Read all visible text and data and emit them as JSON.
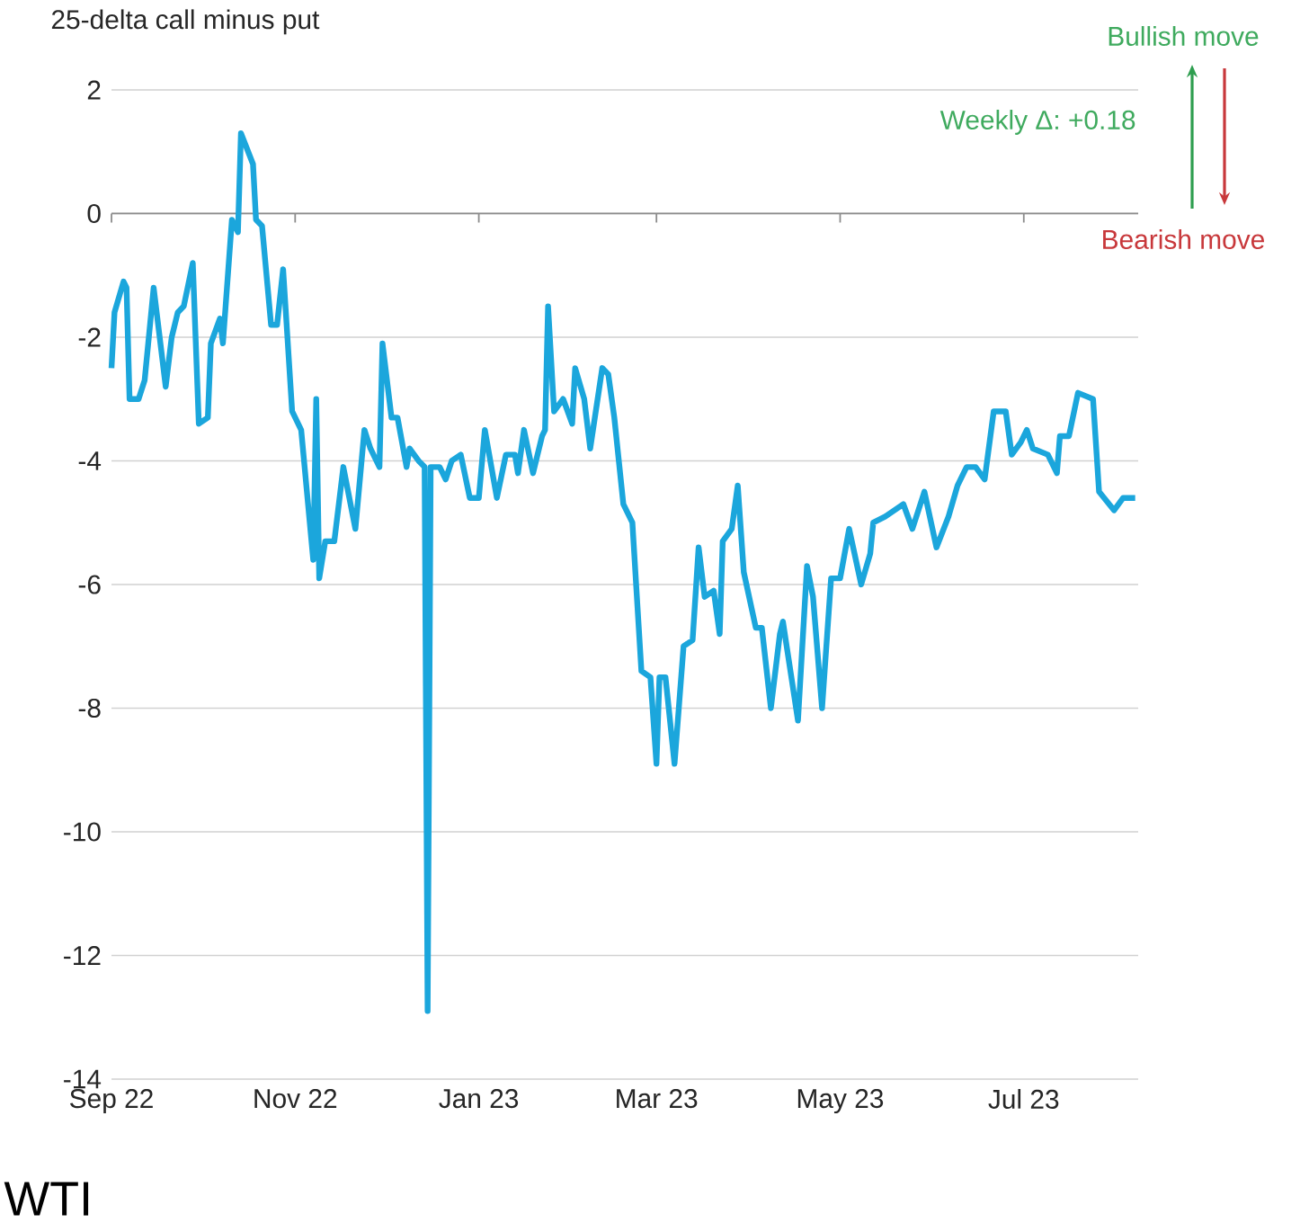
{
  "chart_data": {
    "type": "line",
    "title": "25-delta call minus put",
    "annotations": [
      "Weekly Δ: +0.18",
      "Bullish move",
      "Bearish move",
      "WTI"
    ],
    "x": [
      "2022-09-01",
      "2022-09-02",
      "2022-09-05",
      "2022-09-06",
      "2022-09-07",
      "2022-09-10",
      "2022-09-12",
      "2022-09-15",
      "2022-09-19",
      "2022-09-21",
      "2022-09-23",
      "2022-09-25",
      "2022-09-28",
      "2022-09-30",
      "2022-10-03",
      "2022-10-04",
      "2022-10-07",
      "2022-10-08",
      "2022-10-11",
      "2022-10-13",
      "2022-10-14",
      "2022-10-18",
      "2022-10-19",
      "2022-10-21",
      "2022-10-24",
      "2022-10-26",
      "2022-10-28",
      "2022-10-31",
      "2022-11-03",
      "2022-11-07",
      "2022-11-08",
      "2022-11-09",
      "2022-11-11",
      "2022-11-14",
      "2022-11-17",
      "2022-11-21",
      "2022-11-24",
      "2022-11-26",
      "2022-11-29",
      "2022-11-30",
      "2022-12-03",
      "2022-12-05",
      "2022-12-08",
      "2022-12-09",
      "2022-12-12",
      "2022-12-14",
      "2022-12-15",
      "2022-12-16",
      "2022-12-19",
      "2022-12-21",
      "2022-12-23",
      "2022-12-26",
      "2022-12-29",
      "2023-01-01",
      "2023-01-03",
      "2023-01-07",
      "2023-01-10",
      "2023-01-13",
      "2023-01-14",
      "2023-01-16",
      "2023-01-19",
      "2023-01-22",
      "2023-01-23",
      "2023-01-24",
      "2023-01-26",
      "2023-01-29",
      "2023-02-01",
      "2023-02-02",
      "2023-02-05",
      "2023-02-07",
      "2023-02-11",
      "2023-02-13",
      "2023-02-15",
      "2023-02-18",
      "2023-02-21",
      "2023-02-23",
      "2023-02-24",
      "2023-02-27",
      "2023-03-01",
      "2023-03-02",
      "2023-03-04",
      "2023-03-07",
      "2023-03-10",
      "2023-03-13",
      "2023-03-15",
      "2023-03-17",
      "2023-03-20",
      "2023-03-22",
      "2023-03-23",
      "2023-03-26",
      "2023-03-28",
      "2023-03-30",
      "2023-04-03",
      "2023-04-05",
      "2023-04-08",
      "2023-04-11",
      "2023-04-12",
      "2023-04-17",
      "2023-04-20",
      "2023-04-22",
      "2023-04-25",
      "2023-04-28",
      "2023-05-01",
      "2023-05-04",
      "2023-05-08",
      "2023-05-11",
      "2023-05-12",
      "2023-05-16",
      "2023-05-19",
      "2023-05-22",
      "2023-05-25",
      "2023-05-29",
      "2023-06-02",
      "2023-06-06",
      "2023-06-09",
      "2023-06-12",
      "2023-06-15",
      "2023-06-18",
      "2023-06-21",
      "2023-06-25",
      "2023-06-27",
      "2023-06-30",
      "2023-07-02",
      "2023-07-04",
      "2023-07-09",
      "2023-07-12",
      "2023-07-13",
      "2023-07-16",
      "2023-07-19",
      "2023-07-24",
      "2023-07-26",
      "2023-07-31",
      "2023-08-03",
      "2023-08-06",
      "2023-08-07"
    ],
    "series": [
      {
        "color": "#1ba6dc",
        "values": [
          -2.5,
          -1.6,
          -1.1,
          -1.2,
          -3.0,
          -3.0,
          -2.7,
          -1.2,
          -2.8,
          -2.0,
          -1.6,
          -1.5,
          -0.8,
          -3.4,
          -3.3,
          -2.1,
          -1.7,
          -2.1,
          -0.1,
          -0.3,
          1.3,
          0.8,
          -0.1,
          -0.2,
          -1.8,
          -1.8,
          -0.9,
          -3.2,
          -3.5,
          -5.6,
          -3.0,
          -5.9,
          -5.3,
          -5.3,
          -4.1,
          -5.1,
          -3.5,
          -3.8,
          -4.1,
          -2.1,
          -3.3,
          -3.3,
          -4.1,
          -3.8,
          -4.0,
          -4.1,
          -12.9,
          -4.1,
          -4.1,
          -4.3,
          -4.0,
          -3.9,
          -4.6,
          -4.6,
          -3.5,
          -4.6,
          -3.9,
          -3.9,
          -4.2,
          -3.5,
          -4.2,
          -3.6,
          -3.5,
          -1.5,
          -3.2,
          -3.0,
          -3.4,
          -2.5,
          -3.0,
          -3.8,
          -2.5,
          -2.6,
          -3.3,
          -4.7,
          -5.0,
          -6.6,
          -7.4,
          -7.5,
          -8.9,
          -7.5,
          -7.5,
          -8.9,
          -7.0,
          -6.9,
          -5.4,
          -6.2,
          -6.1,
          -6.8,
          -5.3,
          -5.1,
          -4.4,
          -5.8,
          -6.7,
          -6.7,
          -8.0,
          -6.8,
          -6.6,
          -8.2,
          -5.7,
          -6.2,
          -8.0,
          -5.9,
          -5.9,
          -5.1,
          -6.0,
          -5.5,
          -5.0,
          -4.9,
          -4.8,
          -4.7,
          -5.1,
          -4.5,
          -5.4,
          -4.9,
          -4.4,
          -4.1,
          -4.1,
          -4.3,
          -3.2,
          -3.2,
          -3.9,
          -3.7,
          -3.5,
          -3.8,
          -3.9,
          -4.2,
          -3.6,
          -3.6,
          -2.9,
          -3.0,
          -4.5,
          -4.8,
          -4.6,
          -4.6,
          -4.6
        ]
      }
    ],
    "xlim": [
      "2022-09-01",
      "2023-08-08"
    ],
    "xticks": [
      {
        "value": "2022-09-01",
        "label": "Sep 22"
      },
      {
        "value": "2022-11-01",
        "label": "Nov 22"
      },
      {
        "value": "2023-01-01",
        "label": "Jan 23"
      },
      {
        "value": "2023-03-01",
        "label": "Mar 23"
      },
      {
        "value": "2023-05-01",
        "label": "May 23"
      },
      {
        "value": "2023-07-01",
        "label": "Jul 23"
      }
    ],
    "ylim": [
      -14,
      2
    ],
    "yticks": [
      2,
      0,
      -2,
      -4,
      -6,
      -8,
      -10,
      -12,
      -14
    ],
    "grid": "y",
    "marker": "none",
    "line_style": "solid"
  }
}
